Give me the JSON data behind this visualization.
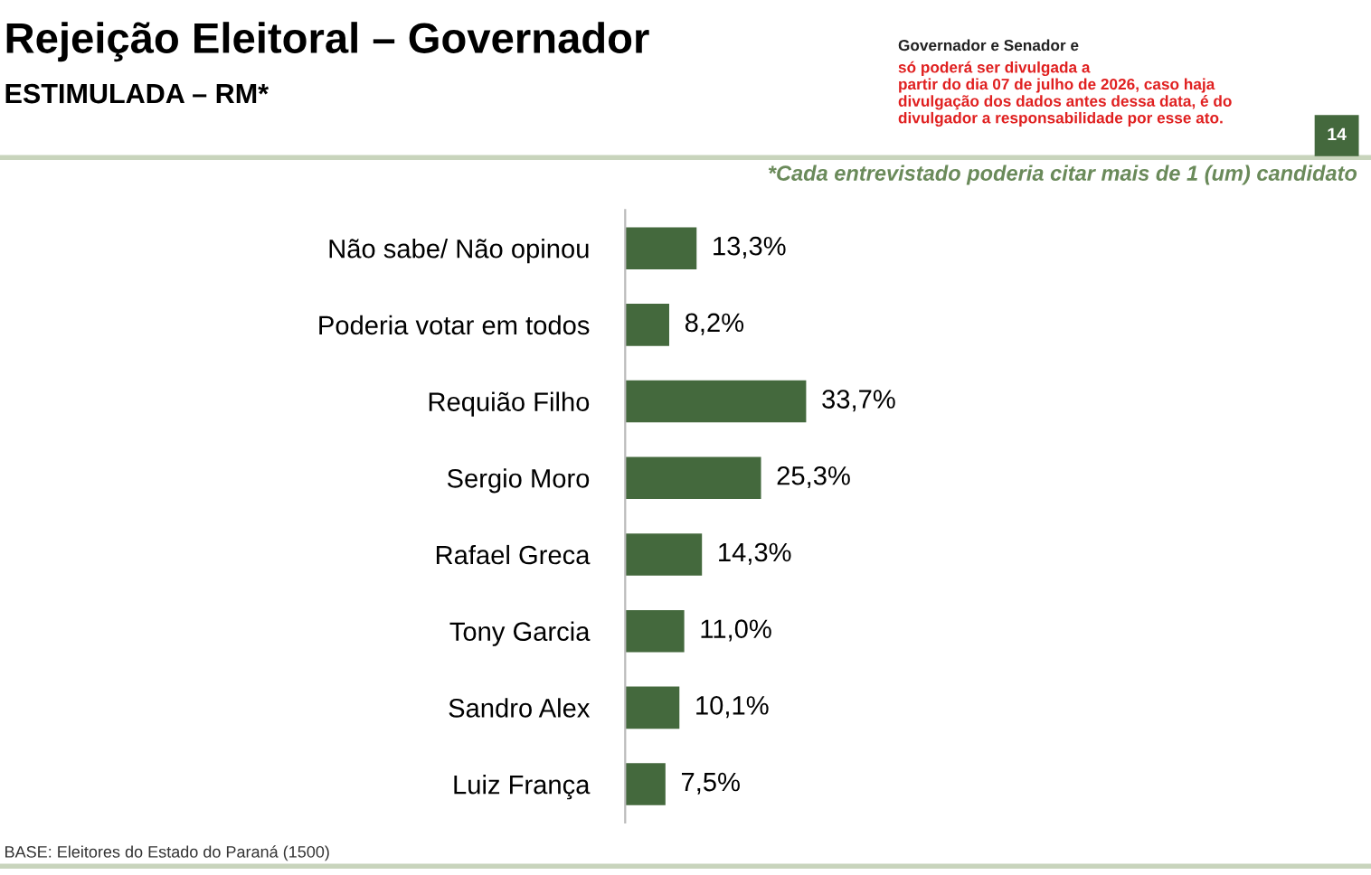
{
  "chart_data": {
    "type": "bar",
    "orientation": "horizontal",
    "title": "Rejeição Eleitoral – Governador",
    "subtitle": "ESTIMULADA – RM*",
    "categories": [
      "Não sabe/ Não opinou",
      "Poderia votar em todos",
      "Requião Filho",
      "Sergio Moro",
      "Rafael Greca",
      "Tony Garcia",
      "Sandro Alex",
      "Luiz França"
    ],
    "values": [
      13.3,
      8.2,
      33.7,
      25.3,
      14.3,
      11.0,
      10.1,
      7.5
    ],
    "value_labels": [
      "13,3%",
      "8,2%",
      "33,7%",
      "25,3%",
      "14,3%",
      "11,0%",
      "10,1%",
      "7,5%"
    ],
    "color": "#44693d",
    "annotations": [
      "Governador e Senador e",
      "só poderá ser divulgada a\npartir do dia 07 de julho de 2026, caso haja\ndivulgação dos dados antes dessa data, é do\ndivulgador a responsabilidade por esse ato.",
      "14",
      "*Cada entrevistado poderia citar mais de 1 (um) candidato",
      "BASE: Eleitores do Estado do Paraná (1500)"
    ]
  }
}
